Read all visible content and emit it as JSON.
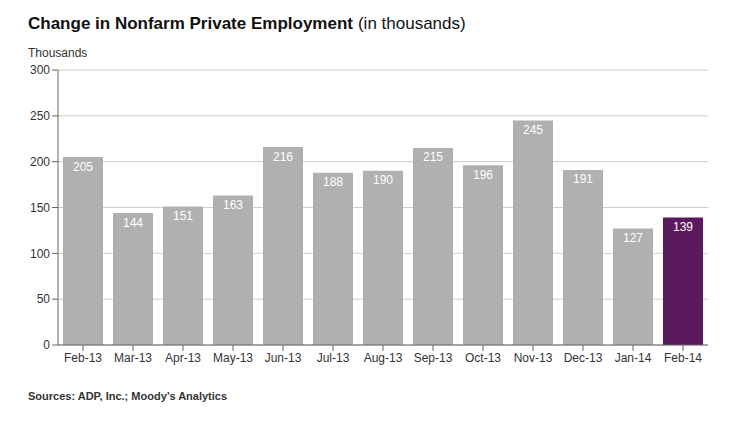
{
  "chart_data": {
    "type": "bar",
    "title": "Change in Nonfarm Private Employment",
    "subtitle": "(in thousands)",
    "y_label": "Thousands",
    "annotations": [
      "Sources: ADP, Inc.; Moody’s Analytics"
    ],
    "categories": [
      "Feb-13",
      "Mar-13",
      "Apr-13",
      "May-13",
      "Jun-13",
      "Jul-13",
      "Aug-13",
      "Sep-13",
      "Oct-13",
      "Nov-13",
      "Dec-13",
      "Jan-14",
      "Feb-14"
    ],
    "values": [
      205,
      144,
      151,
      163,
      216,
      188,
      190,
      215,
      196,
      245,
      191,
      127,
      139
    ],
    "colors": [
      "#b0b0b0",
      "#b0b0b0",
      "#b0b0b0",
      "#b0b0b0",
      "#b0b0b0",
      "#b0b0b0",
      "#b0b0b0",
      "#b0b0b0",
      "#b0b0b0",
      "#b0b0b0",
      "#b0b0b0",
      "#b0b0b0",
      "#5b1a5e"
    ],
    "ylim": [
      0,
      300
    ],
    "yticks": [
      0,
      50,
      100,
      150,
      200,
      250,
      300
    ],
    "grid": true,
    "data_labels": true
  }
}
